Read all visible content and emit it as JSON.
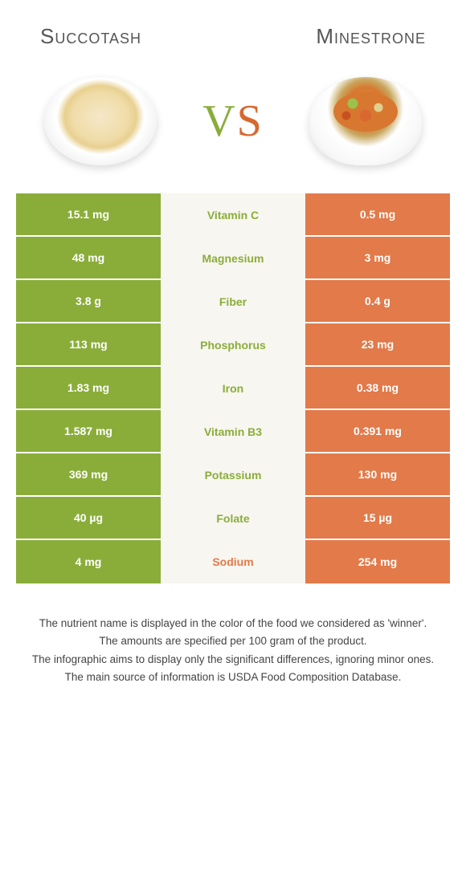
{
  "colors": {
    "left_bg": "#8aad3a",
    "right_bg": "#e27a4a",
    "mid_bg": "#f8f6f0",
    "nutrient_green": "#8aad3a",
    "nutrient_orange": "#e27a4a"
  },
  "header": {
    "left_title": "Succotash",
    "right_title": "Minestrone",
    "vs": "VS"
  },
  "nutrients": [
    {
      "name": "Vitamin C",
      "left": "15.1 mg",
      "right": "0.5 mg",
      "winner": "left"
    },
    {
      "name": "Magnesium",
      "left": "48 mg",
      "right": "3 mg",
      "winner": "left"
    },
    {
      "name": "Fiber",
      "left": "3.8 g",
      "right": "0.4 g",
      "winner": "left"
    },
    {
      "name": "Phosphorus",
      "left": "113 mg",
      "right": "23 mg",
      "winner": "left"
    },
    {
      "name": "Iron",
      "left": "1.83 mg",
      "right": "0.38 mg",
      "winner": "left"
    },
    {
      "name": "Vitamin B3",
      "left": "1.587 mg",
      "right": "0.391 mg",
      "winner": "left"
    },
    {
      "name": "Potassium",
      "left": "369 mg",
      "right": "130 mg",
      "winner": "left"
    },
    {
      "name": "Folate",
      "left": "40 µg",
      "right": "15 µg",
      "winner": "left"
    },
    {
      "name": "Sodium",
      "left": "4 mg",
      "right": "254 mg",
      "winner": "right"
    }
  ],
  "footer": {
    "line1": "The nutrient name is displayed in the color of the food we considered as 'winner'.",
    "line2": "The amounts are specified per 100 gram of the product.",
    "line3": "The infographic aims to display only the significant differences, ignoring minor ones.",
    "line4": "The main source of information is USDA Food Composition Database."
  }
}
